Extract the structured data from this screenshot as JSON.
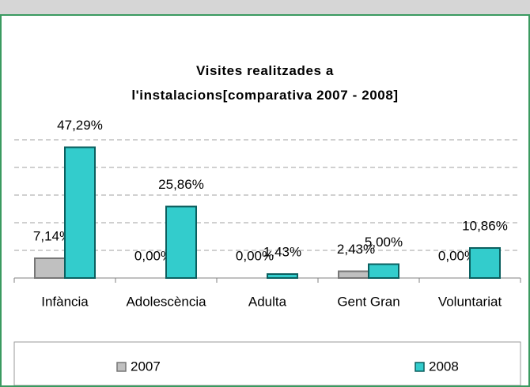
{
  "chart_data": {
    "type": "bar",
    "title": "Visites realitzades a l'instalacions[comparativa 2007 - 2008]",
    "categories": [
      "Infància",
      "Adolescència",
      "Adulta",
      "Gent Gran",
      "Voluntariat"
    ],
    "series": [
      {
        "name": "2007",
        "color": "#c0c0c0",
        "values": [
          7.14,
          0,
          0,
          2.43,
          0
        ],
        "value_labels": [
          "7,14%",
          "0,00%",
          "0,00%",
          "2,43%",
          "0,00%"
        ]
      },
      {
        "name": "2008",
        "color": "#33cccc",
        "values": [
          47.29,
          25.86,
          1.43,
          5.0,
          10.86
        ],
        "value_labels": [
          "47,29%",
          "25,86%",
          "1,43%",
          "5,00%",
          "10,86%"
        ]
      }
    ],
    "ylim": [
      0,
      50
    ],
    "yticks": [
      0,
      10,
      20,
      30,
      40,
      50
    ],
    "grid": true,
    "legend": "bottom"
  }
}
